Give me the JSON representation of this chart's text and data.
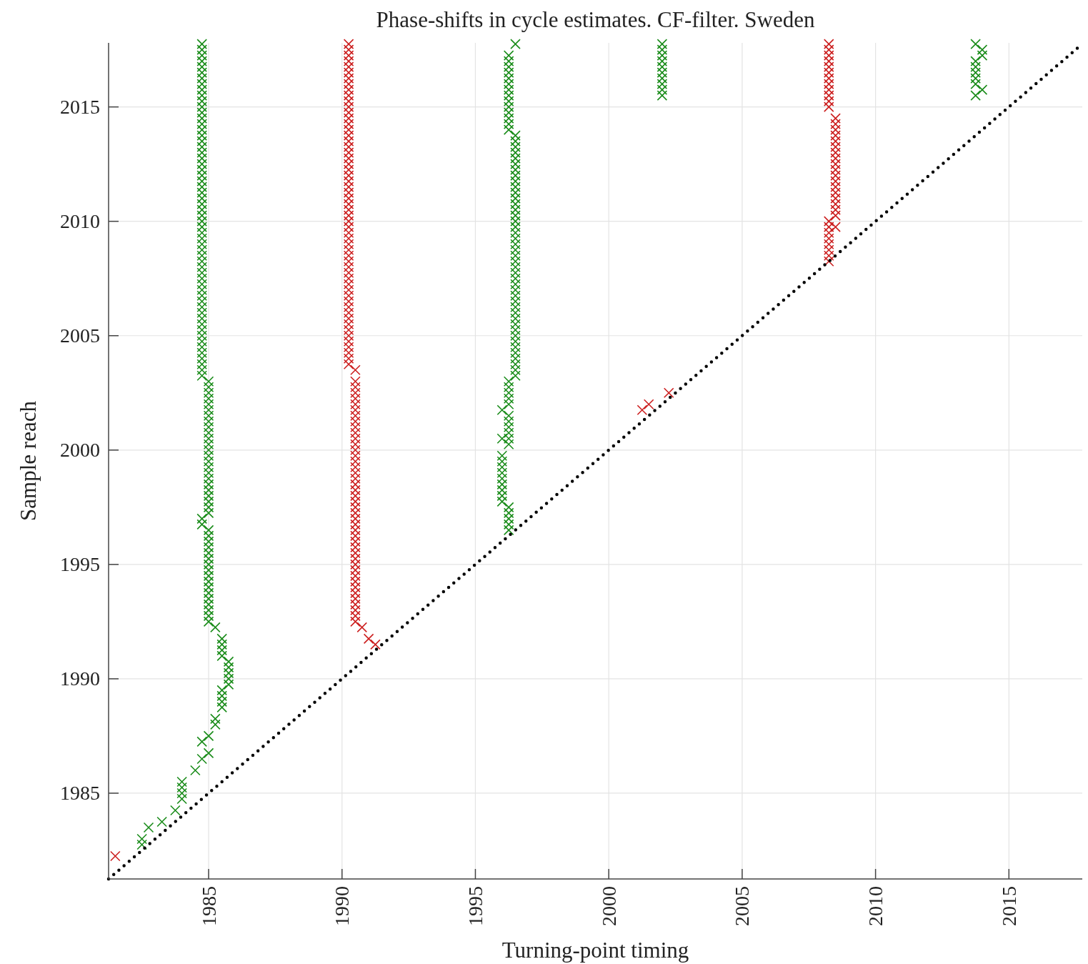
{
  "chart_data": {
    "type": "scatter",
    "title": "Phase-shifts in cycle estimates. CF-filter. Sweden",
    "xlabel": "Turning-point timing",
    "ylabel": "Sample reach",
    "xlim": [
      1981.25,
      2017.75
    ],
    "ylim": [
      1981.25,
      2017.8
    ],
    "xticks": [
      1985,
      1990,
      1995,
      2000,
      2005,
      2010,
      2015
    ],
    "yticks": [
      1985,
      1990,
      1995,
      2000,
      2005,
      2010,
      2015
    ],
    "grid": true,
    "marker": "cross",
    "series": [
      {
        "color": "#1a8c1a",
        "x": [
          1982.5,
          1982.5,
          1982.75,
          1983.25,
          1983.75,
          1984,
          1984,
          1984,
          1984,
          1984.5,
          1984.75,
          1985,
          1984.75,
          1985,
          1985.25,
          1985.25,
          1985.5,
          1985.5,
          1985.5,
          1985.5,
          1985.75,
          1985.75,
          1985.75,
          1985.75,
          1985.75,
          1985.5,
          1985.5,
          1985.5,
          1985.5,
          1985.25
        ],
        "values": [
          1982.75,
          1983,
          1983.5,
          1983.75,
          1984.25,
          1984.75,
          1985,
          1985.25,
          1985.5,
          1986,
          1986.5,
          1986.75,
          1987.25,
          1987.5,
          1988,
          1988.25,
          1988.75,
          1989,
          1989.25,
          1989.5,
          1989.75,
          1990,
          1990.25,
          1990.5,
          1990.75,
          1991,
          1991.25,
          1991.5,
          1991.75,
          1992.25
        ]
      },
      {
        "color": "#1a8c1a",
        "x": [
          1985,
          1985,
          1985,
          1985,
          1985,
          1985,
          1985,
          1985,
          1985,
          1985,
          1985,
          1985,
          1985,
          1985,
          1985,
          1985,
          1985,
          1984.75,
          1984.75
        ],
        "values": [
          1992.5,
          1992.75,
          1993,
          1993.25,
          1993.5,
          1993.75,
          1994,
          1994.25,
          1994.5,
          1994.75,
          1995,
          1995.25,
          1995.5,
          1995.75,
          1996,
          1996.25,
          1996.5,
          1996.75,
          1997
        ]
      },
      {
        "color": "#1a8c1a",
        "x": [
          1985,
          1985,
          1985,
          1985,
          1985,
          1985,
          1985,
          1985,
          1985,
          1985,
          1985,
          1985,
          1985,
          1985,
          1985,
          1985,
          1985,
          1985,
          1985,
          1985,
          1985,
          1985,
          1985,
          1985
        ],
        "values": [
          1997.25,
          1997.5,
          1997.75,
          1998,
          1998.25,
          1998.5,
          1998.75,
          1999,
          1999.25,
          1999.5,
          1999.75,
          2000,
          2000.25,
          2000.5,
          2000.75,
          2001,
          2001.25,
          2001.5,
          2001.75,
          2002,
          2002.25,
          2002.5,
          2002.75,
          2003
        ]
      },
      {
        "color": "#1a8c1a",
        "x": [
          1984.75,
          1984.75,
          1984.75,
          1984.75,
          1984.75,
          1984.75,
          1984.75,
          1984.75,
          1984.75,
          1984.75,
          1984.75,
          1984.75,
          1984.75,
          1984.75,
          1984.75,
          1984.75,
          1984.75,
          1984.75,
          1984.75,
          1984.75,
          1984.75,
          1984.75,
          1984.75,
          1984.75,
          1984.75,
          1984.75,
          1984.75,
          1984.75,
          1984.75,
          1984.75,
          1984.75,
          1984.75,
          1984.75,
          1984.75,
          1984.75,
          1984.75,
          1984.75,
          1984.75,
          1984.75,
          1984.75,
          1984.75,
          1984.75,
          1984.75,
          1984.75,
          1984.75,
          1984.75,
          1984.75,
          1984.75,
          1984.75,
          1984.75,
          1984.75,
          1984.75,
          1984.75,
          1984.75,
          1984.75,
          1984.75,
          1984.75,
          1984.75,
          1984.75
        ],
        "values": [
          2003.25,
          2003.5,
          2003.75,
          2004,
          2004.25,
          2004.5,
          2004.75,
          2005,
          2005.25,
          2005.5,
          2005.75,
          2006,
          2006.25,
          2006.5,
          2006.75,
          2007,
          2007.25,
          2007.5,
          2007.75,
          2008,
          2008.25,
          2008.5,
          2008.75,
          2009,
          2009.25,
          2009.5,
          2009.75,
          2010,
          2010.25,
          2010.5,
          2010.75,
          2011,
          2011.25,
          2011.5,
          2011.75,
          2012,
          2012.25,
          2012.5,
          2012.75,
          2013,
          2013.25,
          2013.5,
          2013.75,
          2014,
          2014.25,
          2014.5,
          2014.75,
          2015,
          2015.25,
          2015.5,
          2015.75,
          2016,
          2016.25,
          2016.5,
          2016.75,
          2017,
          2017.25,
          2017.5,
          2017.75
        ]
      },
      {
        "color": "#1a8c1a",
        "x": [
          1996.25,
          1996.25,
          1996.25,
          1996.25,
          1996.25,
          1996,
          1996,
          1996,
          1996,
          1996,
          1996,
          1996,
          1996,
          1996,
          1996.25,
          1996,
          1996.25,
          1996.25,
          1996.25,
          1996.25,
          1996.25,
          1996,
          1996.25,
          1996.25,
          1996.25,
          1996.25,
          1996.25
        ],
        "values": [
          1996.5,
          1996.75,
          1997,
          1997.25,
          1997.5,
          1997.75,
          1998,
          1998.25,
          1998.5,
          1998.75,
          1999,
          1999.25,
          1999.5,
          1999.75,
          2000.25,
          2000.5,
          2000.5,
          2000.75,
          2001,
          2001.25,
          2001.5,
          2001.75,
          2002,
          2002.25,
          2002.5,
          2002.75,
          2003
        ]
      },
      {
        "color": "#1a8c1a",
        "x": [
          1996.5,
          1996.5,
          1996.5,
          1996.5,
          1996.5,
          1996.5,
          1996.5,
          1996.5,
          1996.5,
          1996.5,
          1996.5,
          1996.5,
          1996.5,
          1996.5,
          1996.5,
          1996.5,
          1996.5,
          1996.5,
          1996.5,
          1996.5,
          1996.5,
          1996.5,
          1996.5,
          1996.5,
          1996.5,
          1996.5,
          1996.5,
          1996.5,
          1996.5,
          1996.5,
          1996.5,
          1996.5,
          1996.5,
          1996.5,
          1996.5,
          1996.5,
          1996.5,
          1996.5,
          1996.5,
          1996.5,
          1996.5,
          1996.5,
          1996.5
        ],
        "values": [
          2003.25,
          2003.5,
          2003.75,
          2004,
          2004.25,
          2004.5,
          2004.75,
          2005,
          2005.25,
          2005.5,
          2005.75,
          2006,
          2006.25,
          2006.5,
          2006.75,
          2007,
          2007.25,
          2007.5,
          2007.75,
          2008,
          2008.25,
          2008.5,
          2008.75,
          2009,
          2009.25,
          2009.5,
          2009.75,
          2010,
          2010.25,
          2010.5,
          2010.75,
          2011,
          2011.25,
          2011.5,
          2011.75,
          2012,
          2012.25,
          2012.5,
          2012.75,
          2013,
          2013.25,
          2013.5,
          2013.75
        ]
      },
      {
        "color": "#1a8c1a",
        "x": [
          1996.25,
          1996.25,
          1996.25,
          1996.25,
          1996.25,
          1996.25,
          1996.25,
          1996.25,
          1996.25,
          1996.25,
          1996.25,
          1996.25,
          1996.25,
          1996.25,
          1996.5
        ],
        "values": [
          2014,
          2014.25,
          2014.5,
          2014.75,
          2015,
          2015.25,
          2015.5,
          2015.75,
          2016,
          2016.25,
          2016.5,
          2016.75,
          2017,
          2017.25,
          2017.75
        ]
      },
      {
        "color": "#1a8c1a",
        "x": [
          2002,
          2002,
          2002,
          2002,
          2002,
          2002,
          2002,
          2002,
          2002,
          2002,
          2013.75,
          2014,
          2013.75,
          2013.75,
          2013.75,
          2013.75,
          2013.75,
          2014,
          2013.75,
          2014
        ],
        "values": [
          2015.5,
          2015.75,
          2016,
          2016.25,
          2016.5,
          2016.75,
          2017,
          2017.25,
          2017.5,
          2017.75,
          2015.5,
          2015.75,
          2016,
          2016.25,
          2016.5,
          2016.75,
          2017,
          2017.25,
          2017.75,
          2017.5
        ]
      },
      {
        "color": "#cc1f1f",
        "x": [
          1981.5,
          1991.25,
          1991,
          1990.75,
          1990.5,
          1990.5,
          1990.5,
          1990.5,
          1990.5,
          1990.5,
          1990.5,
          1990.5,
          1990.5,
          1990.5,
          1990.5,
          1990.5,
          1990.5,
          1990.5,
          1990.5,
          1990.5,
          1990.5,
          1990.5,
          1990.5,
          1990.5,
          1990.5,
          1990.5,
          1990.5,
          1990.5,
          1990.5,
          1990.5,
          1990.5,
          1990.5,
          1990.5,
          1990.5,
          1990.5,
          1990.5,
          1990.5,
          1990.5,
          1990.5,
          1990.5,
          1990.5,
          1990.5,
          1990.5,
          1990.5,
          1990.5,
          1990.5,
          1990.5,
          1990.5
        ],
        "values": [
          1982.25,
          1991.5,
          1991.75,
          1992.25,
          1992.5,
          1992.75,
          1993,
          1993.25,
          1993.5,
          1993.75,
          1994,
          1994.25,
          1994.5,
          1994.75,
          1995,
          1995.25,
          1995.5,
          1995.75,
          1996,
          1996.25,
          1996.5,
          1996.75,
          1997,
          1997.25,
          1997.5,
          1997.75,
          1998,
          1998.25,
          1998.5,
          1998.75,
          1999,
          1999.25,
          1999.5,
          1999.75,
          2000,
          2000.25,
          2000.5,
          2000.75,
          2001,
          2001.25,
          2001.5,
          2001.75,
          2002,
          2002.25,
          2002.5,
          2002.75,
          2003,
          2003.5
        ]
      },
      {
        "color": "#cc1f1f",
        "x": [
          1990.25,
          1990.25,
          1990.25,
          1990.25,
          1990.25,
          1990.25,
          1990.25,
          1990.25,
          1990.25,
          1990.25,
          1990.25,
          1990.25,
          1990.25,
          1990.25,
          1990.25,
          1990.25,
          1990.25,
          1990.25,
          1990.25,
          1990.25,
          1990.25,
          1990.25,
          1990.25,
          1990.25,
          1990.25,
          1990.25,
          1990.25,
          1990.25,
          1990.25,
          1990.25,
          1990.25,
          1990.25,
          1990.25,
          1990.25,
          1990.25,
          1990.25,
          1990.25,
          1990.25,
          1990.25,
          1990.25,
          1990.25,
          1990.25,
          1990.25,
          1990.25,
          1990.25,
          1990.25,
          1990.25,
          1990.25,
          1990.25,
          1990.25,
          1990.25,
          1990.25,
          1990.25,
          1990.25,
          1990.25,
          1990.25,
          1990.25
        ],
        "values": [
          2003.75,
          2004,
          2004.25,
          2004.5,
          2004.75,
          2005,
          2005.25,
          2005.5,
          2005.75,
          2006,
          2006.25,
          2006.5,
          2006.75,
          2007,
          2007.25,
          2007.5,
          2007.75,
          2008,
          2008.25,
          2008.5,
          2008.75,
          2009,
          2009.25,
          2009.5,
          2009.75,
          2010,
          2010.25,
          2010.5,
          2010.75,
          2011,
          2011.25,
          2011.5,
          2011.75,
          2012,
          2012.25,
          2012.5,
          2012.75,
          2013,
          2013.25,
          2013.5,
          2013.75,
          2014,
          2014.25,
          2014.5,
          2014.75,
          2015,
          2015.25,
          2015.5,
          2015.75,
          2016,
          2016.25,
          2016.5,
          2016.75,
          2017,
          2017.25,
          2017.5,
          2017.75
        ]
      },
      {
        "color": "#cc1f1f",
        "x": [
          2001.25,
          2001.5,
          2002.25,
          2008.25,
          2008.25,
          2008.25,
          2008.25,
          2008.25,
          2008.25,
          2008.25,
          2008.5,
          2008.25,
          2008.5,
          2008.5,
          2008.5,
          2008.5,
          2008.5,
          2008.5,
          2008.5,
          2008.5,
          2008.5,
          2008.5,
          2008.5,
          2008.5,
          2008.5,
          2008.5,
          2008.5,
          2008.5,
          2008.5,
          2008.5,
          2008.25,
          2008.25,
          2008.25,
          2008.25,
          2008.25,
          2008.25,
          2008.25,
          2008.25,
          2008.25,
          2008.25,
          2008.25,
          2008.25
        ],
        "values": [
          2001.75,
          2002,
          2002.5,
          2008.25,
          2008.5,
          2008.75,
          2009,
          2009.25,
          2009.5,
          2009.75,
          2009.75,
          2010,
          2010.25,
          2010.5,
          2010.75,
          2011,
          2011.25,
          2011.5,
          2011.75,
          2012,
          2012.25,
          2012.5,
          2012.75,
          2013,
          2013.25,
          2013.5,
          2013.75,
          2014,
          2014.25,
          2014.5,
          2015,
          2015.25,
          2015.5,
          2015.75,
          2016,
          2016.25,
          2016.5,
          2016.75,
          2017,
          2017.25,
          2017.5,
          2017.75
        ]
      },
      {
        "type": "line",
        "color": "#000000",
        "line_style": "dotted",
        "marker": "none",
        "x": [
          1981.25,
          2017.75
        ],
        "values": [
          1981.25,
          2017.75
        ]
      }
    ]
  }
}
